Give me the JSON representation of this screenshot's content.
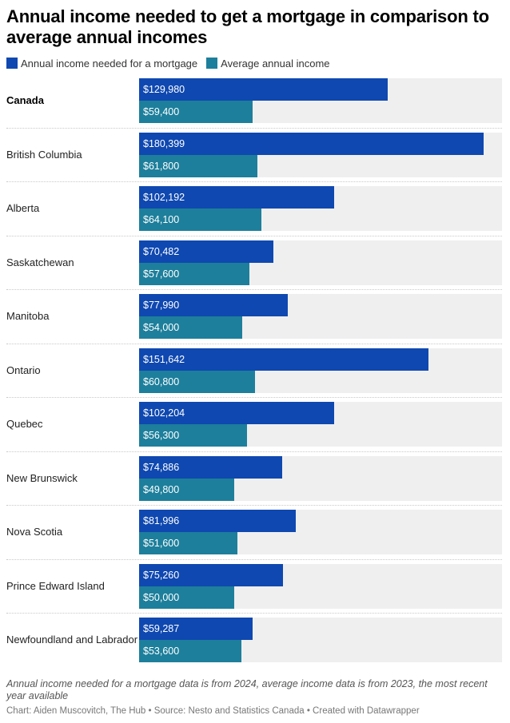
{
  "title": "Annual income needed to get a mortgage in comparison to average annual incomes",
  "legend": [
    {
      "label": "Annual income needed for a mortgage",
      "color": "#0f48b0"
    },
    {
      "label": "Average annual income",
      "color": "#1d7f9b"
    }
  ],
  "notes": "Annual income needed for a mortgage data is from 2024, average income data is from 2023, the most recent year available",
  "credit": "Chart: Aiden Muscovitch, The Hub • Source: Nesto and Statistics Canada • Created with Datawrapper",
  "chart_data": {
    "type": "bar",
    "orientation": "horizontal",
    "xlim": [
      0,
      190000
    ],
    "categories": [
      "Canada",
      "British Columbia",
      "Alberta",
      "Saskatchewan",
      "Manitoba",
      "Ontario",
      "Quebec",
      "New Brunswick",
      "Nova Scotia",
      "Prince Edward Island",
      "Newfoundland and Labrador"
    ],
    "bold_categories": [
      "Canada"
    ],
    "series": [
      {
        "name": "Annual income needed for a mortgage",
        "color": "#0f48b0",
        "values": [
          129980,
          180399,
          102192,
          70482,
          77990,
          151642,
          102204,
          74886,
          81996,
          75260,
          59287
        ],
        "labels": [
          "$129,980",
          "$180,399",
          "$102,192",
          "$70,482",
          "$77,990",
          "$151,642",
          "$102,204",
          "$74,886",
          "$81,996",
          "$75,260",
          "$59,287"
        ]
      },
      {
        "name": "Average annual income",
        "color": "#1d7f9b",
        "values": [
          59400,
          61800,
          64100,
          57600,
          54000,
          60800,
          56300,
          49800,
          51600,
          50000,
          53600
        ],
        "labels": [
          "$59,400",
          "$61,800",
          "$64,100",
          "$57,600",
          "$54,000",
          "$60,800",
          "$56,300",
          "$49,800",
          "$51,600",
          "$50,000",
          "$53,600"
        ]
      }
    ]
  }
}
